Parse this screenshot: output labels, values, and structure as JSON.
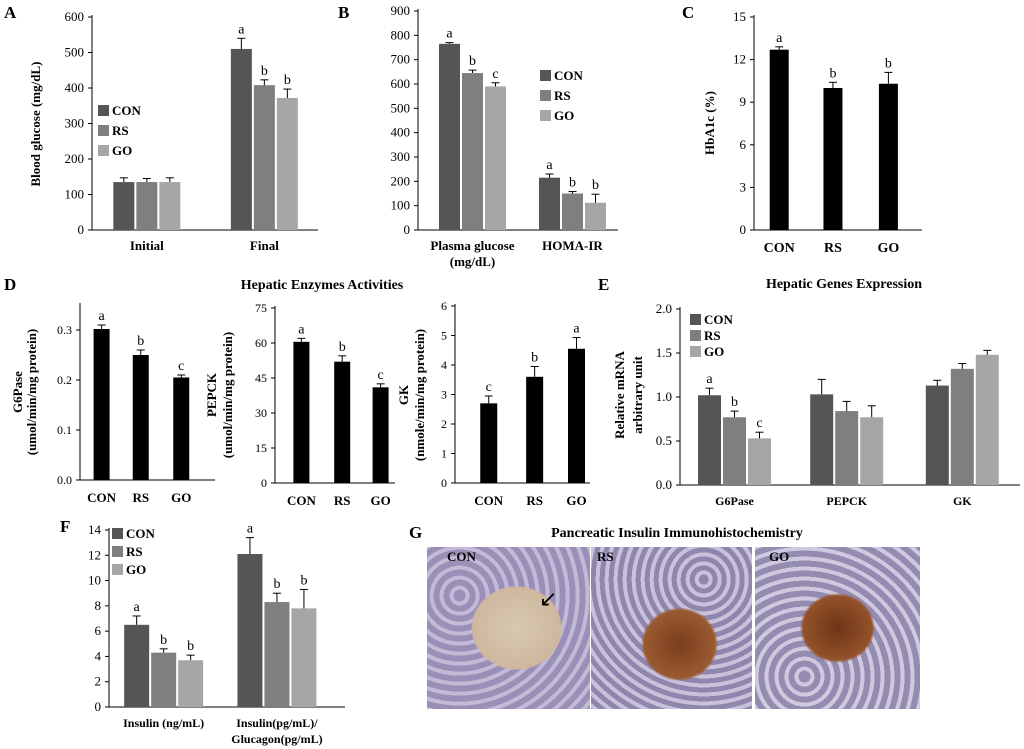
{
  "panel_letters": [
    "A",
    "B",
    "C",
    "D",
    "E",
    "F",
    "G"
  ],
  "colors": {
    "CON": "#555555",
    "RS": "#7f7f7f",
    "GO": "#a6a6a6",
    "black": "#000000"
  },
  "section_titles": {
    "D": "Hepatic Enzymes Activities",
    "E": "Hepatic Genes Expression",
    "G": "Pancreatic Insulin Immunohistochemistry"
  },
  "micrograph_labels": [
    "CON",
    "RS",
    "GO"
  ],
  "chart_data": [
    {
      "id": "A",
      "type": "bar",
      "title": "",
      "ylabel": "Blood glucose (mg/dL)",
      "categories": [
        "Initial",
        "Final"
      ],
      "ylim": [
        0,
        600
      ],
      "yticks": [
        0,
        100,
        200,
        300,
        400,
        500,
        600
      ],
      "legend": {
        "entries": [
          "CON",
          "RS",
          "GO"
        ],
        "placement": "left"
      },
      "series": [
        {
          "name": "CON",
          "values": [
            135,
            510
          ],
          "errors": [
            12,
            30
          ],
          "letters": [
            "",
            "a"
          ]
        },
        {
          "name": "RS",
          "values": [
            135,
            408
          ],
          "errors": [
            10,
            15
          ],
          "letters": [
            "",
            "b"
          ]
        },
        {
          "name": "GO",
          "values": [
            135,
            372
          ],
          "errors": [
            12,
            25
          ],
          "letters": [
            "",
            "b"
          ]
        }
      ]
    },
    {
      "id": "B",
      "type": "bar",
      "title": "",
      "ylabel": "",
      "categories": [
        "Plasma glucose\n(mg/dL)",
        "HOMA-IR"
      ],
      "ylim": [
        0,
        900
      ],
      "yticks": [
        0,
        100,
        200,
        300,
        400,
        500,
        600,
        700,
        800,
        900
      ],
      "legend": {
        "entries": [
          "CON",
          "RS",
          "GO"
        ],
        "placement": "right"
      },
      "series": [
        {
          "name": "CON",
          "values": [
            765,
            215
          ],
          "errors": [
            5,
            15
          ],
          "letters": [
            "a",
            "a"
          ]
        },
        {
          "name": "RS",
          "values": [
            645,
            150
          ],
          "errors": [
            12,
            8
          ],
          "letters": [
            "b",
            "b"
          ]
        },
        {
          "name": "GO",
          "values": [
            590,
            112
          ],
          "errors": [
            15,
            35
          ],
          "letters": [
            "c",
            "b"
          ]
        }
      ]
    },
    {
      "id": "C",
      "type": "bar",
      "title": "",
      "ylabel": "HbA1c (%)",
      "categories": [
        "CON",
        "RS",
        "GO"
      ],
      "ylim": [
        0,
        15
      ],
      "yticks": [
        0,
        3,
        6,
        9,
        12,
        15
      ],
      "series": [
        {
          "name": "",
          "values": [
            12.7,
            10.0,
            10.3
          ],
          "errors": [
            0.2,
            0.4,
            0.8
          ],
          "letters": [
            "a",
            "b",
            "b"
          ],
          "color": "#000000"
        }
      ]
    },
    {
      "id": "D1",
      "type": "bar",
      "title": "",
      "ylabel": "G6Pase\n(umol/min/mg protein)",
      "categories": [
        "CON",
        "RS",
        "GO"
      ],
      "ylim": [
        0,
        0.35
      ],
      "yticks": [
        "0.0",
        "0.1",
        "0.2",
        "0.3"
      ],
      "series": [
        {
          "name": "",
          "values": [
            0.302,
            0.25,
            0.205
          ],
          "errors": [
            0.008,
            0.01,
            0.005
          ],
          "letters": [
            "a",
            "b",
            "c"
          ],
          "color": "#000000"
        }
      ]
    },
    {
      "id": "D2",
      "type": "bar",
      "title": "",
      "ylabel": "PEPCK\n(umol/min/mg protein)",
      "categories": [
        "CON",
        "RS",
        "GO"
      ],
      "ylim": [
        0,
        75
      ],
      "yticks": [
        0,
        15,
        30,
        45,
        60,
        75
      ],
      "series": [
        {
          "name": "",
          "values": [
            60.5,
            52,
            41
          ],
          "errors": [
            1.5,
            2.5,
            1.5
          ],
          "letters": [
            "a",
            "b",
            "c"
          ],
          "color": "#000000"
        }
      ]
    },
    {
      "id": "D3",
      "type": "bar",
      "title": "",
      "ylabel": "GK\n(nmole/min/mg protein)",
      "categories": [
        "CON",
        "RS",
        "GO"
      ],
      "ylim": [
        0,
        6
      ],
      "yticks": [
        0,
        1,
        2,
        3,
        4,
        5,
        6
      ],
      "series": [
        {
          "name": "",
          "values": [
            2.7,
            3.6,
            4.55
          ],
          "errors": [
            0.25,
            0.35,
            0.38
          ],
          "letters": [
            "c",
            "b",
            "a"
          ],
          "color": "#000000"
        }
      ]
    },
    {
      "id": "E",
      "type": "bar",
      "title": "",
      "ylabel": "Relative mRNA\narbitrary unit",
      "categories": [
        "G6Pase",
        "PEPCK",
        "GK"
      ],
      "ylim": [
        0,
        2.0
      ],
      "yticks": [
        "0.0",
        "0.5",
        "1.0",
        "1.5",
        "2.0"
      ],
      "legend": {
        "entries": [
          "CON",
          "RS",
          "GO"
        ],
        "placement": "top-left"
      },
      "series": [
        {
          "name": "CON",
          "values": [
            1.02,
            1.03,
            1.13
          ],
          "errors": [
            0.08,
            0.17,
            0.06
          ],
          "letters": [
            "a",
            "",
            ""
          ]
        },
        {
          "name": "RS",
          "values": [
            0.77,
            0.84,
            1.32
          ],
          "errors": [
            0.07,
            0.11,
            0.06
          ],
          "letters": [
            "b",
            "",
            ""
          ]
        },
        {
          "name": "GO",
          "values": [
            0.53,
            0.77,
            1.48
          ],
          "errors": [
            0.07,
            0.13,
            0.05
          ],
          "letters": [
            "c",
            "",
            ""
          ]
        }
      ]
    },
    {
      "id": "F",
      "type": "bar",
      "title": "",
      "ylabel": "",
      "categories": [
        "Insulin (ng/mL)",
        "Insulin(pg/mL)/\nGlucagon(pg/mL)"
      ],
      "ylim": [
        0,
        14
      ],
      "yticks": [
        0,
        2,
        4,
        6,
        8,
        10,
        12,
        14
      ],
      "legend": {
        "entries": [
          "CON",
          "RS",
          "GO"
        ],
        "placement": "top-left"
      },
      "series": [
        {
          "name": "CON",
          "values": [
            6.5,
            12.1
          ],
          "errors": [
            0.7,
            1.3
          ],
          "letters": [
            "a",
            "a"
          ]
        },
        {
          "name": "RS",
          "values": [
            4.3,
            8.3
          ],
          "errors": [
            0.3,
            0.7
          ],
          "letters": [
            "b",
            "b"
          ]
        },
        {
          "name": "GO",
          "values": [
            3.7,
            7.8
          ],
          "errors": [
            0.4,
            1.5
          ],
          "letters": [
            "b",
            "b"
          ]
        }
      ]
    }
  ]
}
